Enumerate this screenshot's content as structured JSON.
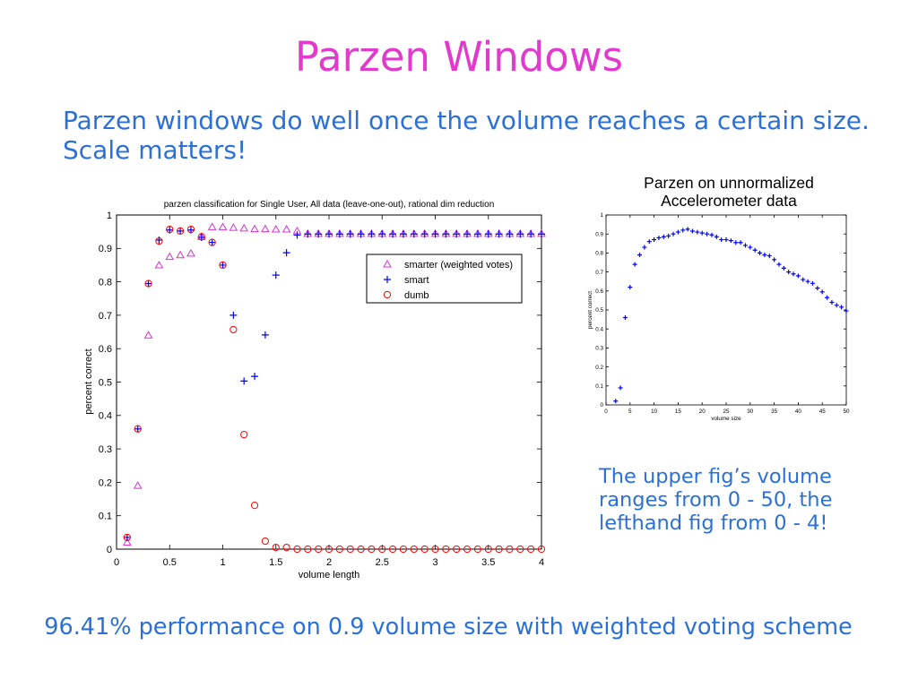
{
  "slide": {
    "title": "Parzen Windows",
    "intro_lines": [
      "Parzen windows do well once the volume reaches a certain size.",
      "Scale matters!"
    ],
    "note_lines": [
      "The upper fig’s volume",
      "ranges from 0 - 50, the",
      "lefthand fig from 0 - 4!"
    ],
    "footer": "96.41% performance on 0.9 volume size with weighted voting scheme",
    "colors": {
      "title": "#e03bcc",
      "text": "#2b70d8"
    }
  },
  "chart_data": [
    {
      "type": "scatter",
      "title": "parzen classification for Single User, All data (leave-one-out), rational dim reduction",
      "xlabel": "volume length",
      "ylabel": "percent correct",
      "xlim": [
        0,
        4
      ],
      "ylim": [
        0,
        1
      ],
      "xticks": [
        "0",
        "0.5",
        "1",
        "1.5",
        "2",
        "2.5",
        "3",
        "3.5",
        "4"
      ],
      "yticks": [
        "0",
        "0.1",
        "0.2",
        "0.3",
        "0.4",
        "0.5",
        "0.6",
        "0.7",
        "0.8",
        "0.9",
        "1"
      ],
      "grid": false,
      "legend_position": "top-right",
      "x": [
        0.1,
        0.2,
        0.3,
        0.4,
        0.5,
        0.6,
        0.7,
        0.8,
        0.9,
        1,
        1.1,
        1.2,
        1.3,
        1.4,
        1.5,
        1.6,
        1.7,
        1.8,
        1.9,
        2,
        2.1,
        2.2,
        2.3,
        2.4,
        2.5,
        2.6,
        2.7,
        2.8,
        2.9,
        3,
        3.1,
        3.2,
        3.3,
        3.4,
        3.5,
        3.6,
        3.7,
        3.8,
        3.9,
        4
      ],
      "series": [
        {
          "name": "smarter (weighted votes)",
          "marker": "triangle",
          "color": "#d633d6",
          "values": [
            0.02,
            0.19,
            0.64,
            0.85,
            0.875,
            0.88,
            0.885,
            0.935,
            0.9641,
            0.964,
            0.962,
            0.96,
            0.958,
            0.958,
            0.957,
            0.957,
            0.952,
            0.944,
            0.944,
            0.944,
            0.944,
            0.944,
            0.944,
            0.944,
            0.944,
            0.944,
            0.944,
            0.944,
            0.944,
            0.944,
            0.944,
            0.944,
            0.944,
            0.944,
            0.944,
            0.944,
            0.944,
            0.944,
            0.944,
            0.944
          ]
        },
        {
          "name": "smart",
          "marker": "plus",
          "color": "#0000ff",
          "values": [
            0.035,
            0.36,
            0.795,
            0.925,
            0.955,
            0.952,
            0.955,
            0.933,
            0.918,
            0.85,
            0.7,
            0.503,
            0.517,
            0.641,
            0.82,
            0.887,
            0.94,
            0.943,
            0.943,
            0.943,
            0.943,
            0.943,
            0.943,
            0.943,
            0.943,
            0.943,
            0.943,
            0.943,
            0.943,
            0.943,
            0.943,
            0.943,
            0.943,
            0.943,
            0.943,
            0.943,
            0.943,
            0.943,
            0.943,
            0.943
          ]
        },
        {
          "name": "dumb",
          "marker": "circle",
          "color": "#ff0000",
          "values": [
            0.035,
            0.36,
            0.795,
            0.922,
            0.957,
            0.952,
            0.957,
            0.935,
            0.918,
            0.85,
            0.657,
            0.343,
            0.131,
            0.024,
            0.005,
            0.005,
            0,
            0,
            0,
            0,
            0,
            0,
            0,
            0,
            0,
            0,
            0,
            0,
            0,
            0,
            0,
            0,
            0,
            0,
            0,
            0,
            0,
            0,
            0,
            0
          ]
        }
      ]
    },
    {
      "type": "scatter",
      "title_lines": [
        "Parzen on unnormalized",
        "Accelerometer data"
      ],
      "xlabel": "volume size",
      "ylabel": "percent correct",
      "xlim": [
        0,
        50
      ],
      "ylim": [
        0,
        1
      ],
      "xticks": [
        "0",
        "5",
        "10",
        "15",
        "20",
        "25",
        "30",
        "35",
        "40",
        "45",
        "50"
      ],
      "yticks": [
        "0",
        "0.1",
        "0.2",
        "0.3",
        "0.4",
        "0.5",
        "0.6",
        "0.7",
        "0.8",
        "0.9",
        "1"
      ],
      "grid": false,
      "x": [
        2,
        3,
        4,
        5,
        6,
        7,
        8,
        9,
        10,
        11,
        12,
        13,
        14,
        15,
        16,
        17,
        18,
        19,
        20,
        21,
        22,
        23,
        24,
        25,
        26,
        27,
        28,
        29,
        30,
        31,
        32,
        33,
        34,
        35,
        36,
        37,
        38,
        39,
        40,
        41,
        42,
        43,
        44,
        45,
        46,
        47,
        48,
        49,
        50
      ],
      "series": [
        {
          "marker": "plus",
          "color": "#0000ff",
          "values": [
            0.02,
            0.09,
            0.46,
            0.62,
            0.74,
            0.79,
            0.83,
            0.86,
            0.87,
            0.88,
            0.885,
            0.89,
            0.9,
            0.91,
            0.92,
            0.925,
            0.915,
            0.91,
            0.905,
            0.9,
            0.895,
            0.885,
            0.87,
            0.87,
            0.865,
            0.855,
            0.855,
            0.84,
            0.83,
            0.815,
            0.8,
            0.79,
            0.785,
            0.765,
            0.74,
            0.72,
            0.7,
            0.69,
            0.68,
            0.66,
            0.65,
            0.64,
            0.615,
            0.595,
            0.565,
            0.54,
            0.525,
            0.515,
            0.495
          ]
        }
      ]
    }
  ]
}
